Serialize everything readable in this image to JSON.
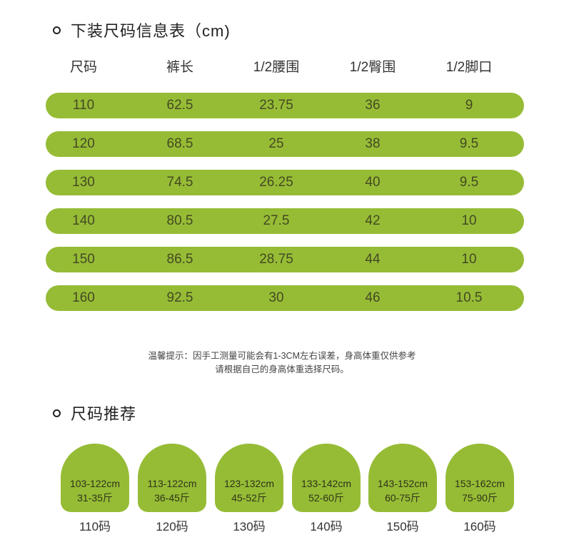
{
  "size_table": {
    "title": "下装尺码信息表（cm)",
    "headers": [
      "尺码",
      "裤长",
      "1/2腰围",
      "1/2臀围",
      "1/2脚口"
    ],
    "rows": [
      [
        "110",
        "62.5",
        "23.75",
        "36",
        "9"
      ],
      [
        "120",
        "68.5",
        "25",
        "38",
        "9.5"
      ],
      [
        "130",
        "74.5",
        "26.25",
        "40",
        "9.5"
      ],
      [
        "140",
        "80.5",
        "27.5",
        "42",
        "10"
      ],
      [
        "150",
        "86.5",
        "28.75",
        "44",
        "10"
      ],
      [
        "160",
        "92.5",
        "30",
        "46",
        "10.5"
      ]
    ]
  },
  "notice": {
    "line1": "温馨提示：因手工测量可能会有1-3CM左右误差，身高体重仅供参考",
    "line2": "请根据自己的身高体重选择尺码。"
  },
  "recommend": {
    "title": "尺码推荐",
    "items": [
      {
        "height": "103-122cm",
        "weight": "31-35斤",
        "label": "110码"
      },
      {
        "height": "113-122cm",
        "weight": "36-45斤",
        "label": "120码"
      },
      {
        "height": "123-132cm",
        "weight": "45-52斤",
        "label": "130码"
      },
      {
        "height": "133-142cm",
        "weight": "52-60斤",
        "label": "140码"
      },
      {
        "height": "143-152cm",
        "weight": "60-75斤",
        "label": "150码"
      },
      {
        "height": "153-162cm",
        "weight": "75-90斤",
        "label": "160码"
      }
    ]
  },
  "colors": {
    "accent": "#96bc36"
  }
}
